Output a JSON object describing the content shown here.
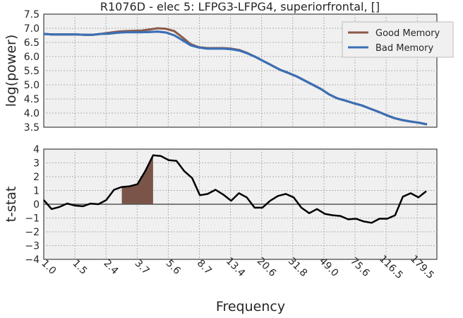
{
  "chart_data": [
    {
      "type": "line",
      "title": "R1076D - elec 5: LFPG3-LFPG4, superiorfrontal, []",
      "xlabel": "",
      "ylabel": "log(power)",
      "ylim": [
        3.5,
        7.5
      ],
      "yticks": [
        "3.5",
        "4.0",
        "4.5",
        "5.0",
        "5.5",
        "6.0",
        "6.5",
        "7.0",
        "7.5"
      ],
      "grid": true,
      "legend_position": "top-right",
      "series": [
        {
          "name": "Good Memory",
          "color": "#8B5A4A",
          "values": [
            6.8,
            6.78,
            6.78,
            6.78,
            6.78,
            6.77,
            6.77,
            6.8,
            6.84,
            6.88,
            6.9,
            6.91,
            6.92,
            6.96,
            7.0,
            6.98,
            6.9,
            6.68,
            6.44,
            6.33,
            6.3,
            6.3,
            6.3,
            6.28,
            6.23,
            6.12,
            5.98,
            5.83,
            5.68,
            5.53,
            5.42,
            5.3,
            5.15,
            5.0,
            4.85,
            4.66,
            4.52,
            4.44,
            4.35,
            4.27,
            4.16,
            4.05,
            3.93,
            3.82,
            3.75,
            3.7,
            3.66,
            3.6
          ]
        },
        {
          "name": "Bad Memory",
          "color": "#3A6FB5",
          "values": [
            6.8,
            6.78,
            6.78,
            6.78,
            6.78,
            6.77,
            6.77,
            6.8,
            6.81,
            6.84,
            6.86,
            6.86,
            6.86,
            6.87,
            6.88,
            6.85,
            6.75,
            6.58,
            6.4,
            6.32,
            6.28,
            6.28,
            6.28,
            6.26,
            6.21,
            6.11,
            5.98,
            5.83,
            5.68,
            5.53,
            5.42,
            5.3,
            5.15,
            5.0,
            4.85,
            4.66,
            4.52,
            4.44,
            4.35,
            4.27,
            4.16,
            4.05,
            3.93,
            3.82,
            3.75,
            3.7,
            3.66,
            3.6
          ]
        }
      ]
    },
    {
      "type": "line",
      "title": "",
      "xlabel": "Frequency",
      "ylabel": "t-stat",
      "ylim": [
        -4,
        4
      ],
      "yticks": [
        "−4",
        "−3",
        "−2",
        "−1",
        "0",
        "1",
        "2",
        "3",
        "4"
      ],
      "xticks": [
        "1.0",
        "1.5",
        "2.4",
        "3.7",
        "5.6",
        "8.7",
        "13.4",
        "20.6",
        "31.8",
        "49.0",
        "75.6",
        "116.5",
        "179.5"
      ],
      "grid": true,
      "baseline": 0,
      "shaded_range": [
        10,
        14
      ],
      "shade_color": "#7B5449",
      "series": [
        {
          "name": "",
          "color": "#000000",
          "values": [
            0.3,
            -0.35,
            -0.2,
            0.05,
            -0.1,
            -0.15,
            0.05,
            0.0,
            0.3,
            1.05,
            1.25,
            1.3,
            1.45,
            2.4,
            3.55,
            3.5,
            3.2,
            3.15,
            2.4,
            1.9,
            0.65,
            0.75,
            1.05,
            0.7,
            0.25,
            0.8,
            0.5,
            -0.25,
            -0.25,
            0.25,
            0.6,
            0.75,
            0.5,
            -0.25,
            -0.65,
            -0.35,
            -0.7,
            -0.8,
            -0.85,
            -1.1,
            -1.05,
            -1.25,
            -1.35,
            -1.05,
            -1.05,
            -0.8,
            0.55,
            0.8,
            0.5,
            0.95
          ]
        }
      ]
    }
  ]
}
